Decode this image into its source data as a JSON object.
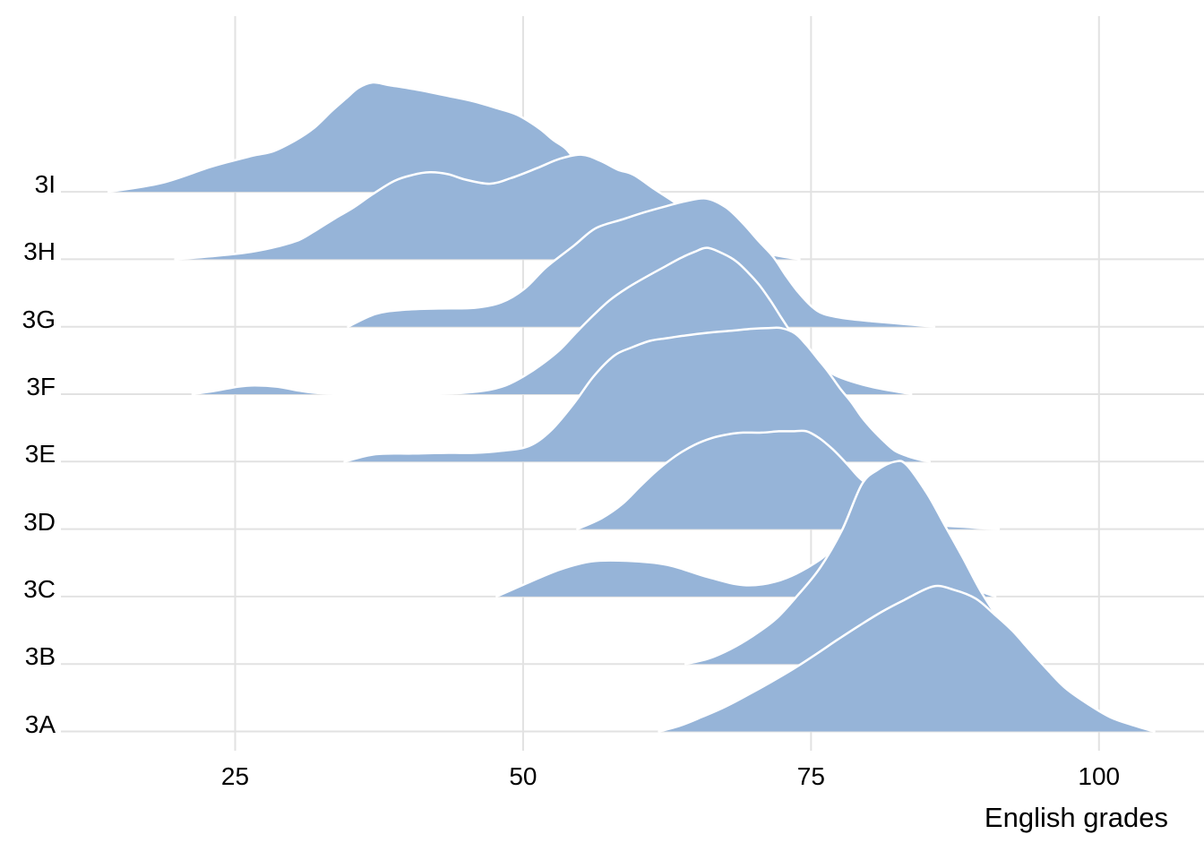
{
  "chart_data": {
    "type": "area",
    "variant": "ridgeline-density",
    "title": "",
    "xlabel": "English grades",
    "ylabel": "",
    "x_ticks": [
      25,
      50,
      75,
      100
    ],
    "x_range": [
      10,
      109
    ],
    "grid": "on",
    "legend": "none",
    "categories_bottom_to_top": [
      "3A",
      "3B",
      "3C",
      "3D",
      "3E",
      "3F",
      "3G",
      "3H",
      "3I"
    ],
    "height_unit": "multiples of row spacing",
    "series": [
      {
        "name": "3I",
        "points": [
          [
            14.0,
            0
          ],
          [
            18.6,
            0.13
          ],
          [
            22.9,
            0.37
          ],
          [
            26.4,
            0.53
          ],
          [
            28.3,
            0.6
          ],
          [
            30.2,
            0.76
          ],
          [
            31.8,
            0.94
          ],
          [
            33.4,
            1.2
          ],
          [
            34.6,
            1.38
          ],
          [
            35.7,
            1.54
          ],
          [
            36.9,
            1.62
          ],
          [
            38.4,
            1.58
          ],
          [
            40.9,
            1.51
          ],
          [
            43.5,
            1.42
          ],
          [
            45.7,
            1.34
          ],
          [
            47.7,
            1.24
          ],
          [
            49.5,
            1.14
          ],
          [
            51.4,
            0.94
          ],
          [
            52.6,
            0.77
          ],
          [
            53.7,
            0.64
          ],
          [
            54.7,
            0.44
          ],
          [
            55.9,
            0.29
          ],
          [
            57.5,
            0.16
          ],
          [
            59.0,
            0.07
          ],
          [
            60.6,
            0
          ]
        ]
      },
      {
        "name": "3H",
        "points": [
          [
            19.8,
            0
          ],
          [
            23.3,
            0.05
          ],
          [
            26.4,
            0.11
          ],
          [
            28.7,
            0.19
          ],
          [
            30.6,
            0.29
          ],
          [
            32.2,
            0.45
          ],
          [
            33.7,
            0.61
          ],
          [
            35.3,
            0.77
          ],
          [
            36.9,
            0.96
          ],
          [
            38.8,
            1.16
          ],
          [
            40.4,
            1.25
          ],
          [
            41.9,
            1.29
          ],
          [
            43.5,
            1.26
          ],
          [
            45.0,
            1.18
          ],
          [
            47.1,
            1.12
          ],
          [
            48.9,
            1.2
          ],
          [
            51.2,
            1.35
          ],
          [
            53.2,
            1.49
          ],
          [
            55.1,
            1.55
          ],
          [
            56.7,
            1.46
          ],
          [
            58.2,
            1.33
          ],
          [
            59.6,
            1.25
          ],
          [
            61.4,
            1.04
          ],
          [
            63.1,
            0.85
          ],
          [
            64.9,
            0.64
          ],
          [
            66.8,
            0.42
          ],
          [
            68.7,
            0.24
          ],
          [
            70.3,
            0.12
          ],
          [
            72.2,
            0.05
          ],
          [
            74.0,
            0
          ]
        ]
      },
      {
        "name": "3G",
        "points": [
          [
            34.8,
            0
          ],
          [
            37.2,
            0.19
          ],
          [
            39.6,
            0.25
          ],
          [
            42.7,
            0.27
          ],
          [
            45.8,
            0.28
          ],
          [
            48.1,
            0.36
          ],
          [
            50.1,
            0.56
          ],
          [
            52.0,
            0.88
          ],
          [
            54.4,
            1.2
          ],
          [
            56.3,
            1.46
          ],
          [
            58.6,
            1.59
          ],
          [
            60.6,
            1.7
          ],
          [
            62.5,
            1.79
          ],
          [
            64.1,
            1.86
          ],
          [
            65.9,
            1.9
          ],
          [
            67.6,
            1.77
          ],
          [
            69.1,
            1.53
          ],
          [
            70.5,
            1.26
          ],
          [
            71.7,
            1.04
          ],
          [
            72.8,
            0.76
          ],
          [
            73.8,
            0.53
          ],
          [
            75.0,
            0.31
          ],
          [
            76.1,
            0.19
          ],
          [
            78.1,
            0.12
          ],
          [
            80.4,
            0.08
          ],
          [
            83.1,
            0.04
          ],
          [
            85.7,
            0
          ]
        ]
      },
      {
        "name": "3F",
        "points": [
          [
            21.3,
            0
          ],
          [
            23.3,
            0.05
          ],
          [
            25.2,
            0.11
          ],
          [
            26.7,
            0.13
          ],
          [
            28.7,
            0.11
          ],
          [
            30.6,
            0.05
          ],
          [
            32.6,
            0.01
          ],
          [
            35.7,
            0
          ],
          [
            40.4,
            0
          ],
          [
            43.9,
            0.01
          ],
          [
            46.6,
            0.05
          ],
          [
            48.5,
            0.13
          ],
          [
            50.1,
            0.27
          ],
          [
            51.6,
            0.44
          ],
          [
            53.2,
            0.66
          ],
          [
            54.7,
            0.93
          ],
          [
            56.1,
            1.17
          ],
          [
            57.5,
            1.39
          ],
          [
            59.0,
            1.57
          ],
          [
            60.6,
            1.73
          ],
          [
            62.3,
            1.89
          ],
          [
            63.7,
            2.02
          ],
          [
            64.9,
            2.11
          ],
          [
            66.0,
            2.17
          ],
          [
            67.4,
            2.08
          ],
          [
            68.5,
            1.97
          ],
          [
            69.5,
            1.81
          ],
          [
            70.5,
            1.62
          ],
          [
            71.5,
            1.38
          ],
          [
            72.4,
            1.14
          ],
          [
            73.2,
            0.93
          ],
          [
            74.0,
            0.72
          ],
          [
            75.0,
            0.56
          ],
          [
            76.0,
            0.4
          ],
          [
            77.1,
            0.28
          ],
          [
            78.5,
            0.19
          ],
          [
            80.2,
            0.11
          ],
          [
            82.0,
            0.05
          ],
          [
            83.7,
            0
          ]
        ]
      },
      {
        "name": "3E",
        "points": [
          [
            34.5,
            0
          ],
          [
            37.2,
            0.11
          ],
          [
            40.4,
            0.12
          ],
          [
            43.5,
            0.13
          ],
          [
            45.8,
            0.13
          ],
          [
            48.1,
            0.16
          ],
          [
            50.5,
            0.23
          ],
          [
            52.4,
            0.46
          ],
          [
            54.4,
            0.86
          ],
          [
            56.1,
            1.26
          ],
          [
            57.9,
            1.57
          ],
          [
            59.4,
            1.69
          ],
          [
            61.0,
            1.79
          ],
          [
            62.5,
            1.83
          ],
          [
            64.1,
            1.87
          ],
          [
            66.0,
            1.91
          ],
          [
            68.0,
            1.94
          ],
          [
            69.9,
            1.97
          ],
          [
            71.3,
            1.98
          ],
          [
            72.4,
            1.98
          ],
          [
            73.6,
            1.9
          ],
          [
            74.6,
            1.73
          ],
          [
            75.5,
            1.54
          ],
          [
            76.5,
            1.33
          ],
          [
            77.5,
            1.09
          ],
          [
            78.5,
            0.88
          ],
          [
            79.4,
            0.66
          ],
          [
            80.4,
            0.46
          ],
          [
            81.4,
            0.29
          ],
          [
            82.3,
            0.16
          ],
          [
            83.4,
            0.08
          ],
          [
            84.4,
            0.03
          ],
          [
            85.3,
            0
          ]
        ]
      },
      {
        "name": "3D",
        "points": [
          [
            54.7,
            0
          ],
          [
            56.8,
            0.16
          ],
          [
            58.6,
            0.37
          ],
          [
            60.2,
            0.64
          ],
          [
            61.7,
            0.88
          ],
          [
            63.3,
            1.09
          ],
          [
            64.9,
            1.25
          ],
          [
            66.4,
            1.35
          ],
          [
            68.0,
            1.41
          ],
          [
            69.1,
            1.43
          ],
          [
            70.7,
            1.43
          ],
          [
            72.2,
            1.45
          ],
          [
            73.4,
            1.45
          ],
          [
            74.6,
            1.45
          ],
          [
            75.7,
            1.35
          ],
          [
            76.9,
            1.18
          ],
          [
            78.1,
            0.97
          ],
          [
            79.2,
            0.76
          ],
          [
            80.4,
            0.6
          ],
          [
            81.6,
            0.42
          ],
          [
            82.9,
            0.25
          ],
          [
            84.0,
            0.16
          ],
          [
            85.2,
            0.08
          ],
          [
            86.6,
            0.05
          ],
          [
            88.5,
            0.03
          ],
          [
            90.0,
            0.01
          ],
          [
            91.3,
            0
          ]
        ]
      },
      {
        "name": "3C",
        "points": [
          [
            47.7,
            0
          ],
          [
            50.5,
            0.21
          ],
          [
            53.2,
            0.4
          ],
          [
            55.9,
            0.52
          ],
          [
            59.0,
            0.53
          ],
          [
            62.5,
            0.47
          ],
          [
            66.0,
            0.29
          ],
          [
            69.1,
            0.17
          ],
          [
            71.9,
            0.22
          ],
          [
            74.6,
            0.42
          ],
          [
            76.9,
            0.72
          ],
          [
            78.9,
            1.28
          ],
          [
            80.8,
            1.35
          ],
          [
            82.7,
            1.15
          ],
          [
            84.6,
            0.85
          ],
          [
            86.6,
            0.52
          ],
          [
            88.0,
            0.3
          ],
          [
            89.5,
            0.1
          ],
          [
            91.0,
            0
          ]
        ]
      },
      {
        "name": "3B",
        "points": [
          [
            64.1,
            0
          ],
          [
            66.1,
            0.08
          ],
          [
            68.0,
            0.22
          ],
          [
            69.9,
            0.41
          ],
          [
            71.9,
            0.66
          ],
          [
            73.8,
            1.01
          ],
          [
            75.8,
            1.43
          ],
          [
            77.7,
            1.99
          ],
          [
            79.4,
            2.66
          ],
          [
            80.8,
            2.88
          ],
          [
            82.3,
            3.0
          ],
          [
            83.3,
            2.95
          ],
          [
            85.1,
            2.52
          ],
          [
            86.6,
            2.06
          ],
          [
            88.2,
            1.57
          ],
          [
            89.7,
            1.09
          ],
          [
            91.3,
            0.66
          ],
          [
            92.8,
            0.27
          ],
          [
            94.0,
            0.11
          ],
          [
            95.0,
            0
          ]
        ]
      },
      {
        "name": "3A",
        "points": [
          [
            61.8,
            0
          ],
          [
            63.7,
            0.09
          ],
          [
            65.6,
            0.22
          ],
          [
            67.6,
            0.37
          ],
          [
            69.5,
            0.54
          ],
          [
            71.5,
            0.73
          ],
          [
            73.4,
            0.92
          ],
          [
            75.3,
            1.13
          ],
          [
            77.3,
            1.36
          ],
          [
            79.2,
            1.57
          ],
          [
            81.2,
            1.78
          ],
          [
            83.1,
            1.95
          ],
          [
            85.6,
            2.15
          ],
          [
            87.4,
            2.1
          ],
          [
            89.3,
            1.97
          ],
          [
            90.9,
            1.74
          ],
          [
            92.5,
            1.49
          ],
          [
            94.0,
            1.2
          ],
          [
            95.6,
            0.9
          ],
          [
            97.1,
            0.64
          ],
          [
            99.1,
            0.4
          ],
          [
            101.0,
            0.21
          ],
          [
            103.0,
            0.09
          ],
          [
            104.8,
            0
          ]
        ]
      }
    ]
  },
  "styles": {
    "ridge_fill": "#96b4d8",
    "ridge_stroke": "#ffffff",
    "gridline_color": "#e2e2e2",
    "text_color": "#000000",
    "background": "#ffffff"
  }
}
